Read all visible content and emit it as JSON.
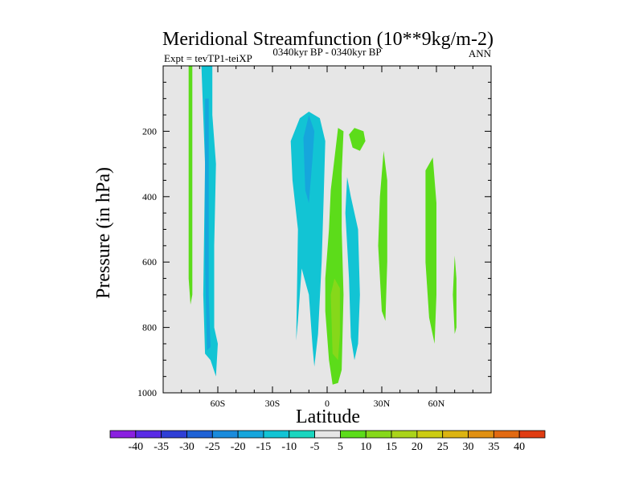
{
  "chart_data": {
    "type": "contour",
    "title": "Meridional Streamfunction (10**9kg/m-2)",
    "left_subtitle": "Expt = tevTP1-teiXP",
    "center_subtitle": "0340kyr BP - 0340kyr BP",
    "right_subtitle": "ANN",
    "xlabel": "Latitude",
    "ylabel": "Pressure (in hPa)",
    "xlim": [
      -90,
      90
    ],
    "ylim": [
      0,
      1000
    ],
    "x_ticks": [
      {
        "value": -60,
        "label": "60S"
      },
      {
        "value": -30,
        "label": "30S"
      },
      {
        "value": 0,
        "label": "0"
      },
      {
        "value": 30,
        "label": "30N"
      },
      {
        "value": 60,
        "label": "60N"
      }
    ],
    "y_ticks": [
      {
        "value": 200,
        "label": "200"
      },
      {
        "value": 400,
        "label": "400"
      },
      {
        "value": 600,
        "label": "600"
      },
      {
        "value": 800,
        "label": "800"
      },
      {
        "value": 1000,
        "label": "1000"
      }
    ],
    "background_color": "#e6e6e6",
    "colorbar": {
      "levels": [
        -40,
        -35,
        -30,
        -25,
        -20,
        -15,
        -10,
        -5,
        5,
        10,
        15,
        20,
        25,
        30,
        35,
        40
      ],
      "colors": [
        "#8a20e0",
        "#5a2be6",
        "#2f3fd6",
        "#1f62d6",
        "#1a8bdc",
        "#16a6dc",
        "#12c4d4",
        "#1ad6bf",
        "#e6e6e6",
        "#5cdc1a",
        "#86d81a",
        "#aad41a",
        "#cccc12",
        "#dcb412",
        "#e09012",
        "#e26a12",
        "#e03c12"
      ]
    },
    "regions": [
      {
        "name": "cell-78S-positive",
        "color": "#5cdc1a",
        "points": [
          [
            -76,
            0
          ],
          [
            -74,
            0
          ],
          [
            -74,
            700
          ],
          [
            -75,
            730
          ],
          [
            -76,
            650
          ]
        ]
      },
      {
        "name": "cell-64S-negative",
        "color": "#12c4d4",
        "points": [
          [
            -69,
            0
          ],
          [
            -63,
            0
          ],
          [
            -63,
            150
          ],
          [
            -61,
            300
          ],
          [
            -62,
            550
          ],
          [
            -62,
            800
          ],
          [
            -60,
            850
          ],
          [
            -61,
            950
          ],
          [
            -64,
            900
          ],
          [
            -67,
            880
          ],
          [
            -68,
            700
          ],
          [
            -67,
            300
          ]
        ]
      },
      {
        "name": "cell-64S-core",
        "color": "#16a6dc",
        "points": [
          [
            -67,
            100
          ],
          [
            -65,
            100
          ],
          [
            -65,
            700
          ],
          [
            -64,
            860
          ],
          [
            -66,
            870
          ],
          [
            -67,
            600
          ]
        ]
      },
      {
        "name": "cell-10S-negative",
        "color": "#12c4d4",
        "points": [
          [
            -20,
            230
          ],
          [
            -15,
            160
          ],
          [
            -10,
            140
          ],
          [
            -4,
            160
          ],
          [
            -1,
            230
          ],
          [
            -2,
            420
          ],
          [
            -3,
            600
          ],
          [
            -5,
            820
          ],
          [
            -7,
            920
          ],
          [
            -8,
            860
          ],
          [
            -10,
            700
          ],
          [
            -14,
            620
          ],
          [
            -16,
            780
          ],
          [
            -17,
            840
          ],
          [
            -16,
            500
          ],
          [
            -19,
            350
          ]
        ]
      },
      {
        "name": "cell-10S-core",
        "color": "#16a6dc",
        "points": [
          [
            -13,
            220
          ],
          [
            -10,
            150
          ],
          [
            -7,
            200
          ],
          [
            -8,
            280
          ],
          [
            -10,
            420
          ],
          [
            -12,
            380
          ]
        ]
      },
      {
        "name": "cell-5N-positive",
        "color": "#5cdc1a",
        "points": [
          [
            2,
            380
          ],
          [
            6,
            190
          ],
          [
            9,
            200
          ],
          [
            8,
            330
          ],
          [
            8,
            500
          ],
          [
            9,
            700
          ],
          [
            8,
            930
          ],
          [
            6,
            970
          ],
          [
            3,
            975
          ],
          [
            1,
            900
          ],
          [
            -1,
            750
          ],
          [
            -1,
            650
          ],
          [
            1,
            500
          ]
        ]
      },
      {
        "name": "cell-5N-core",
        "color": "#86d81a",
        "points": [
          [
            2,
            700
          ],
          [
            4,
            650
          ],
          [
            7,
            680
          ],
          [
            7,
            820
          ],
          [
            6,
            900
          ],
          [
            3,
            880
          ]
        ]
      },
      {
        "name": "cell-15N-upper",
        "color": "#5cdc1a",
        "points": [
          [
            12,
            210
          ],
          [
            15,
            190
          ],
          [
            20,
            200
          ],
          [
            21,
            230
          ],
          [
            18,
            260
          ],
          [
            14,
            250
          ]
        ]
      },
      {
        "name": "cell-14N-negative",
        "color": "#12c4d4",
        "points": [
          [
            11,
            340
          ],
          [
            13,
            400
          ],
          [
            17,
            500
          ],
          [
            18,
            700
          ],
          [
            17,
            850
          ],
          [
            15,
            900
          ],
          [
            13,
            830
          ],
          [
            12,
            650
          ],
          [
            10,
            450
          ]
        ]
      },
      {
        "name": "cell-32N-positive",
        "color": "#5cdc1a",
        "points": [
          [
            31,
            260
          ],
          [
            33,
            350
          ],
          [
            33,
            600
          ],
          [
            32,
            780
          ],
          [
            30,
            750
          ],
          [
            28,
            550
          ],
          [
            29,
            400
          ]
        ]
      },
      {
        "name": "cell-58N-positive",
        "color": "#5cdc1a",
        "points": [
          [
            54,
            320
          ],
          [
            58,
            280
          ],
          [
            60,
            420
          ],
          [
            60,
            700
          ],
          [
            59,
            850
          ],
          [
            56,
            770
          ],
          [
            54,
            600
          ]
        ]
      },
      {
        "name": "cell-71N-positive",
        "color": "#5cdc1a",
        "points": [
          [
            70,
            580
          ],
          [
            71,
            650
          ],
          [
            71,
            800
          ],
          [
            70,
            820
          ],
          [
            69,
            700
          ]
        ]
      }
    ]
  }
}
